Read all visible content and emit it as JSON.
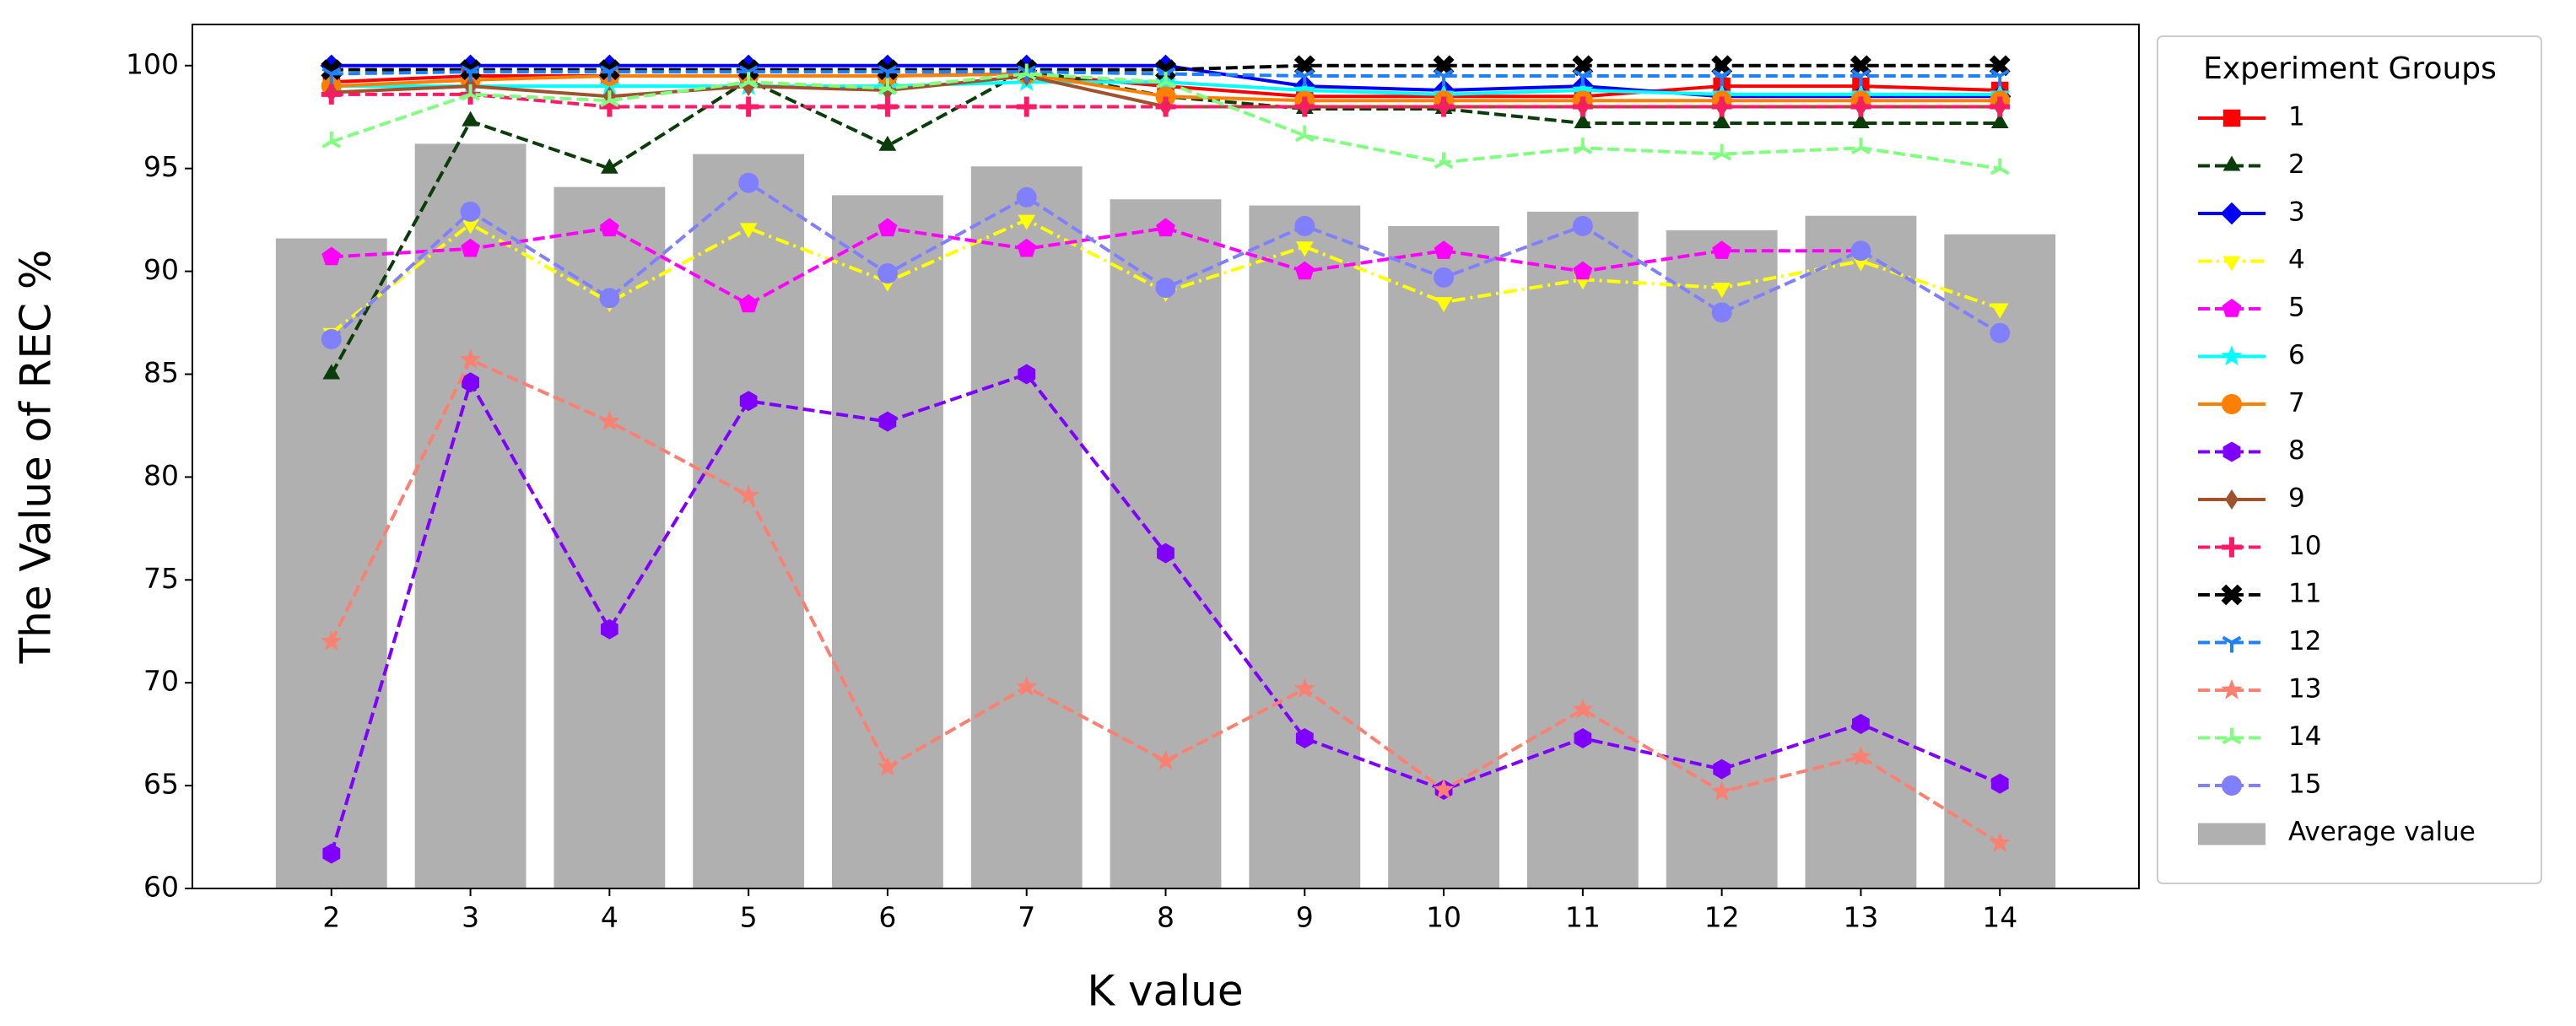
{
  "chart_data": {
    "type": "combo",
    "xlabel": "K value",
    "ylabel": "The Value of REC %",
    "x": [
      2,
      3,
      4,
      5,
      6,
      7,
      8,
      9,
      10,
      11,
      12,
      13,
      14
    ],
    "xlim": [
      1,
      15
    ],
    "xticks": [
      2,
      3,
      4,
      5,
      6,
      7,
      8,
      9,
      10,
      11,
      12,
      13,
      14
    ],
    "ylim": [
      60,
      102
    ],
    "yticks": [
      60,
      65,
      70,
      75,
      80,
      85,
      90,
      95,
      100
    ],
    "legend": {
      "title": "Experiment Groups",
      "loc": "right"
    },
    "series": [
      {
        "name": "Average value",
        "type": "bar",
        "color": "#b0b0b0",
        "values": [
          91.6,
          96.2,
          94.1,
          95.7,
          93.7,
          95.1,
          93.5,
          93.2,
          92.2,
          92.9,
          92.0,
          92.7,
          91.8
        ]
      },
      {
        "name": "1",
        "type": "line",
        "color": "#ff0000",
        "linestyle": "solid",
        "marker": "square",
        "values": [
          99.2,
          99.5,
          99.5,
          99.5,
          99.5,
          99.6,
          99.0,
          98.5,
          98.5,
          98.5,
          99.0,
          99.0,
          98.8
        ]
      },
      {
        "name": "2",
        "type": "line",
        "color": "#0b3d0b",
        "linestyle": "dashed",
        "marker": "triangle",
        "values": [
          85.0,
          97.3,
          95.0,
          99.3,
          96.1,
          99.8,
          98.5,
          97.9,
          97.9,
          97.2,
          97.2,
          97.2,
          97.2
        ]
      },
      {
        "name": "3",
        "type": "line",
        "color": "#0000ff",
        "linestyle": "solid",
        "marker": "diamond",
        "values": [
          100,
          100,
          100,
          100,
          100,
          100,
          100,
          99.0,
          98.8,
          99.0,
          98.5,
          98.5,
          98.5
        ]
      },
      {
        "name": "4",
        "type": "line",
        "color": "#ffff00",
        "linestyle": "dashdot",
        "marker": "triangle_down",
        "values": [
          87.0,
          92.3,
          88.5,
          92.1,
          89.5,
          92.5,
          89.0,
          91.2,
          88.5,
          89.6,
          89.2,
          90.5,
          88.2
        ]
      },
      {
        "name": "5",
        "type": "line",
        "color": "#ff00ff",
        "linestyle": "dashed",
        "marker": "pentagon",
        "values": [
          90.7,
          91.1,
          92.1,
          88.4,
          92.1,
          91.1,
          92.1,
          90.0,
          91.0,
          90.0,
          91.0,
          91.0,
          null
        ]
      },
      {
        "name": "6",
        "type": "line",
        "color": "#00ffff",
        "linestyle": "solid",
        "marker": "star",
        "values": [
          99.0,
          99.0,
          99.0,
          99.0,
          99.0,
          99.2,
          99.2,
          98.8,
          98.6,
          98.8,
          98.6,
          98.6,
          98.6
        ]
      },
      {
        "name": "7",
        "type": "line",
        "color": "#ff8000",
        "linestyle": "solid",
        "marker": "circle",
        "values": [
          99.0,
          99.3,
          99.5,
          99.5,
          99.5,
          99.6,
          98.5,
          98.3,
          98.3,
          98.3,
          98.3,
          98.3,
          98.3
        ]
      },
      {
        "name": "8",
        "type": "line",
        "color": "#7f00ff",
        "linestyle": "dashed",
        "marker": "hexagon",
        "values": [
          61.7,
          84.6,
          72.6,
          83.7,
          82.7,
          85.0,
          76.3,
          67.3,
          64.8,
          67.3,
          65.8,
          68.0,
          65.1
        ]
      },
      {
        "name": "9",
        "type": "line",
        "color": "#a0522d",
        "linestyle": "solid",
        "marker": "thin_diamond",
        "values": [
          98.7,
          99.0,
          98.5,
          99.0,
          98.8,
          99.5,
          98.0,
          98.0,
          98.0,
          98.0,
          98.0,
          98.0,
          98.0
        ]
      },
      {
        "name": "10",
        "type": "line",
        "color": "#ff1a66",
        "linestyle": "dashed",
        "marker": "plus",
        "values": [
          98.6,
          98.6,
          98.0,
          98.0,
          98.0,
          98.0,
          98.0,
          98.0,
          98.0,
          98.0,
          98.0,
          98.0,
          98.0
        ]
      },
      {
        "name": "11",
        "type": "line",
        "color": "#000000",
        "linestyle": "dashed",
        "marker": "x",
        "values": [
          99.8,
          99.8,
          99.8,
          99.8,
          99.8,
          99.8,
          99.8,
          100,
          100,
          100,
          100,
          100,
          100
        ]
      },
      {
        "name": "12",
        "type": "line",
        "color": "#1e80ff",
        "linestyle": "dashed",
        "marker": "tri_down",
        "values": [
          99.6,
          99.7,
          99.7,
          99.7,
          99.7,
          99.7,
          99.6,
          99.5,
          99.5,
          99.5,
          99.5,
          99.5,
          99.5
        ]
      },
      {
        "name": "13",
        "type": "line",
        "color": "#fa8072",
        "linestyle": "dashed",
        "marker": "star",
        "values": [
          72.0,
          85.7,
          82.7,
          79.1,
          65.9,
          69.8,
          66.2,
          69.7,
          64.8,
          68.7,
          64.7,
          66.4,
          62.2
        ]
      },
      {
        "name": "14",
        "type": "line",
        "color": "#80ff80",
        "linestyle": "dashed",
        "marker": "tri_up",
        "values": [
          96.3,
          98.6,
          98.3,
          99.2,
          98.9,
          99.6,
          99.2,
          96.6,
          95.3,
          96.0,
          95.7,
          96.0,
          95.0
        ]
      },
      {
        "name": "15",
        "type": "line",
        "color": "#8080ff",
        "linestyle": "dashed",
        "marker": "circle",
        "values": [
          86.7,
          92.9,
          88.7,
          94.3,
          89.9,
          93.6,
          89.2,
          92.2,
          89.7,
          92.2,
          88.0,
          91.0,
          87.0
        ]
      }
    ]
  }
}
